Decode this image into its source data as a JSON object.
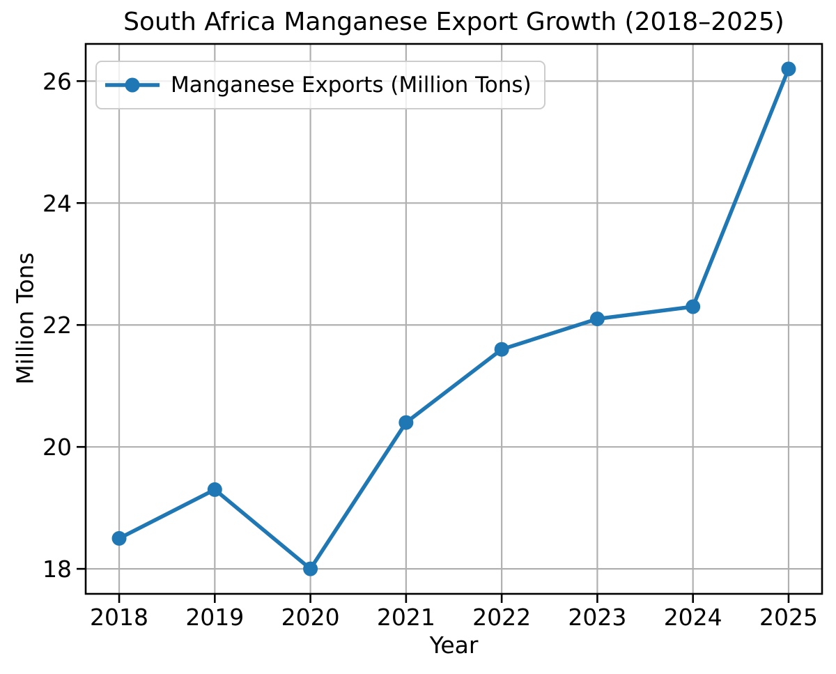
{
  "chart_data": {
    "type": "line",
    "title": "South Africa Manganese Export Growth (2018–2025)",
    "xlabel": "Year",
    "ylabel": "Million Tons",
    "x": [
      2018,
      2019,
      2020,
      2021,
      2022,
      2023,
      2024,
      2025
    ],
    "series": [
      {
        "name": "Manganese Exports (Million Tons)",
        "values": [
          18.5,
          19.3,
          18.0,
          20.4,
          21.6,
          22.1,
          22.3,
          26.2
        ]
      }
    ],
    "xticks": [
      2018,
      2019,
      2020,
      2021,
      2022,
      2023,
      2024,
      2025
    ],
    "yticks": [
      18,
      20,
      22,
      24,
      26
    ],
    "xlim": [
      2017.65,
      2025.35
    ],
    "ylim": [
      17.59,
      26.61
    ],
    "grid": true,
    "legend_position": "upper left",
    "line_color": "#1f77b4",
    "marker": "o",
    "grid_color": "#b0b0b0",
    "spine_color": "#000000",
    "background_color": "#ffffff"
  }
}
